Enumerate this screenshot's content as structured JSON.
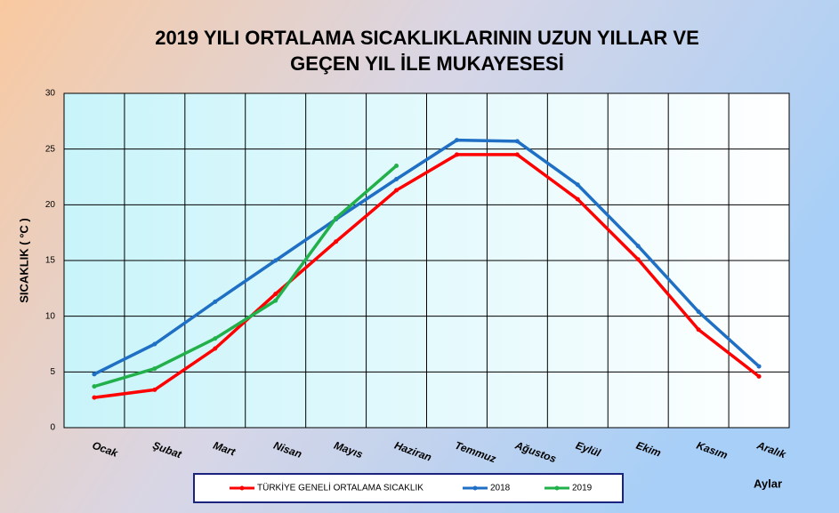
{
  "chart_data": {
    "type": "line",
    "title": [
      "2019 YILI ORTALAMA SICAKLIKLARININ UZUN YILLAR VE",
      "GEÇEN  YIL İLE MUKAYESESİ"
    ],
    "y_label": "SICAKLIK ( °C )",
    "x_label": "Aylar",
    "categories": [
      "Ocak",
      "Şubat",
      "Mart",
      "Nisan",
      "Mayıs",
      "Haziran",
      "Temmuz",
      "Ağustos",
      "Eylül",
      "Ekim",
      "Kasım",
      "Aralık"
    ],
    "series": [
      {
        "name": "TÜRKİYE GENELİ ORTALAMA SICAKLIK",
        "color": "#ff0000",
        "values": [
          2.7,
          3.4,
          7.1,
          12.0,
          16.7,
          21.3,
          24.5,
          24.5,
          20.5,
          15.1,
          8.8,
          4.6
        ]
      },
      {
        "name": "2018",
        "color": "#1f6fc5",
        "values": [
          4.8,
          7.5,
          11.3,
          15.0,
          18.7,
          22.3,
          25.8,
          25.7,
          21.8,
          16.3,
          10.4,
          5.5
        ]
      },
      {
        "name": "2019",
        "color": "#22b04a",
        "values": [
          3.7,
          5.3,
          8.0,
          11.4,
          18.8,
          23.5,
          null,
          null,
          null,
          null,
          null,
          null
        ]
      }
    ],
    "ylim": [
      0,
      30
    ],
    "yticks": [
      0,
      5,
      10,
      15,
      20,
      25,
      30
    ],
    "grid": true
  }
}
